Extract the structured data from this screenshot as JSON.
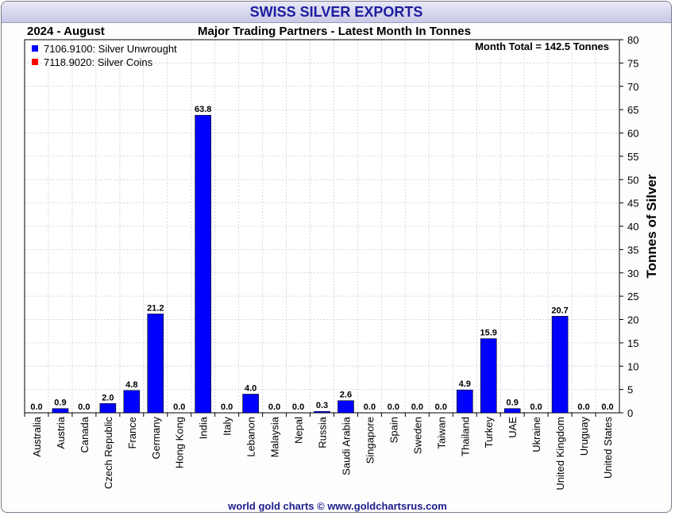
{
  "header": {
    "title": "SWISS SILVER EXPORTS",
    "period": "2024 - August",
    "subtitle": "Major Trading Partners - Latest Month In Tonnes"
  },
  "footer": {
    "credit": "world gold charts © www.goldchartsrus.com"
  },
  "chart_data": {
    "type": "bar",
    "title": "SWISS SILVER EXPORTS",
    "subtitle": "Major Trading Partners - Latest Month In Tonnes",
    "annotation": "Month Total = 142.5 Tonnes",
    "ylabel": "Tonnes of Silver",
    "xlabel": "",
    "ylim": [
      0,
      80
    ],
    "ytick_step": 5,
    "y_axis_side": "right",
    "grid": true,
    "legend_position": "top-left",
    "categories": [
      "Australia",
      "Austria",
      "Canada",
      "Czech Republic",
      "France",
      "Germany",
      "Hong Kong",
      "India",
      "Italy",
      "Lebanon",
      "Malaysia",
      "Nepal",
      "Russia",
      "Saudi Arabia",
      "Singapore",
      "Spain",
      "Sweden",
      "Taiwan",
      "Thailand",
      "Turkey",
      "UAE",
      "Ukraine",
      "United Kingdom",
      "Uruguay",
      "United States"
    ],
    "series": [
      {
        "name": "7106.9100: Silver Unwrought",
        "color": "#0000ff",
        "values": [
          0.0,
          0.9,
          0.0,
          2.0,
          4.8,
          21.2,
          0.0,
          63.8,
          0.0,
          4.0,
          0.0,
          0.0,
          0.3,
          2.6,
          0.0,
          0.0,
          0.0,
          0.0,
          4.9,
          15.9,
          0.9,
          0.0,
          20.7,
          0.0,
          0.0
        ],
        "labels": [
          "0.0",
          "0.9",
          "0.0",
          "2.0",
          "4.8",
          "21.2",
          "0.0",
          "63.8",
          "0.0",
          "4.0",
          "0.0",
          "0.0",
          "0.3",
          "2.6",
          "0.0",
          "0.0",
          "0.0",
          "0.0",
          "4.9",
          "15.9",
          "0.9",
          "0.0",
          "20.7",
          "0.0",
          "0.0"
        ]
      },
      {
        "name": "7118.9020: Silver Coins",
        "color": "#ff0000",
        "values": [
          0,
          0,
          0,
          0,
          0,
          0,
          0,
          0,
          0,
          0,
          0,
          0,
          0,
          0,
          0,
          0,
          0,
          0,
          0,
          0,
          0,
          0,
          0,
          0,
          0
        ]
      }
    ]
  }
}
